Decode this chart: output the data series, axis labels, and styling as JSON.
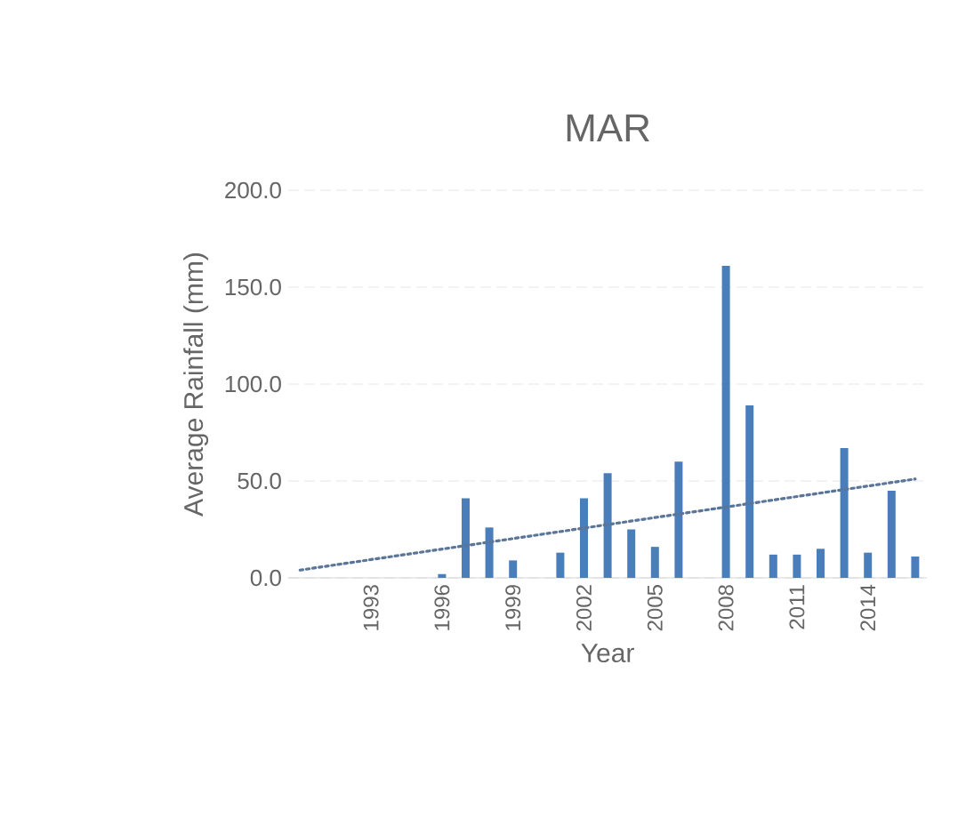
{
  "chart_data": {
    "type": "bar",
    "title": "MAR",
    "xlabel": "Year",
    "ylabel": "Average Rainfall (mm)",
    "categories": [
      null,
      null,
      null,
      "1993",
      null,
      null,
      "1996",
      null,
      null,
      "1999",
      null,
      null,
      "2002",
      null,
      null,
      "2005",
      null,
      null,
      "2008",
      null,
      null,
      "2011",
      null,
      null,
      "2014",
      null,
      null
    ],
    "series": [
      {
        "color": "#4a7ebb",
        "values": [
          0,
          0,
          0,
          0,
          0,
          0,
          2,
          41,
          26,
          9,
          0,
          13,
          41,
          54,
          25,
          16,
          60,
          0,
          161,
          89,
          12,
          12,
          15,
          67,
          13,
          45,
          11
        ]
      },
      {
        "type": "line",
        "color": "#5a7598",
        "line_style": "dotted",
        "values": [
          4,
          null,
          null,
          null,
          null,
          null,
          null,
          null,
          null,
          null,
          null,
          null,
          null,
          null,
          null,
          null,
          null,
          null,
          null,
          null,
          null,
          null,
          null,
          null,
          null,
          null,
          51
        ]
      }
    ],
    "ylim": [
      0,
      200
    ],
    "yticks": [
      {
        "value": 0,
        "label": "0.0"
      },
      {
        "value": 50,
        "label": "50.0"
      },
      {
        "value": 100,
        "label": "100.0"
      },
      {
        "value": 150,
        "label": "150.0"
      },
      {
        "value": 200,
        "label": "200.0"
      }
    ],
    "grid": "y"
  }
}
